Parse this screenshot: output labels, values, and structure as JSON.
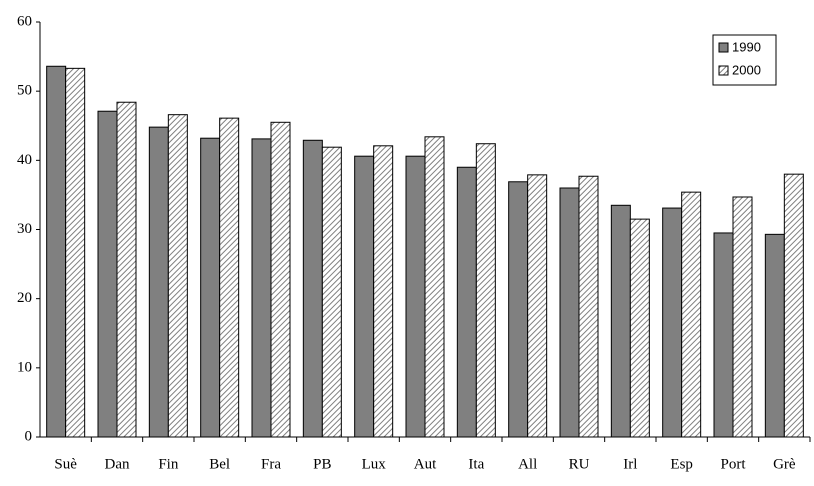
{
  "chart_data": {
    "type": "bar",
    "categories": [
      "Suè",
      "Dan",
      "Fin",
      "Bel",
      "Fra",
      "PB",
      "Lux",
      "Aut",
      "Ita",
      "All",
      "RU",
      "Irl",
      "Esp",
      "Port",
      "Grè"
    ],
    "series": [
      {
        "name": "1990",
        "color": "#808080",
        "hatch": false,
        "values": [
          53.6,
          47.1,
          44.8,
          43.2,
          43.1,
          42.9,
          40.6,
          40.6,
          39.0,
          36.9,
          36.0,
          33.5,
          33.1,
          29.5,
          29.3
        ]
      },
      {
        "name": "2000",
        "color": "#808080",
        "hatch": true,
        "values": [
          53.3,
          48.4,
          46.6,
          46.1,
          45.5,
          41.9,
          42.1,
          43.4,
          42.4,
          37.9,
          37.7,
          31.5,
          35.4,
          34.7,
          38.0
        ]
      }
    ],
    "ylim": [
      0,
      60
    ],
    "yticks": [
      0,
      10,
      20,
      30,
      40,
      50,
      60
    ],
    "grid": false,
    "legend": "upper right"
  }
}
